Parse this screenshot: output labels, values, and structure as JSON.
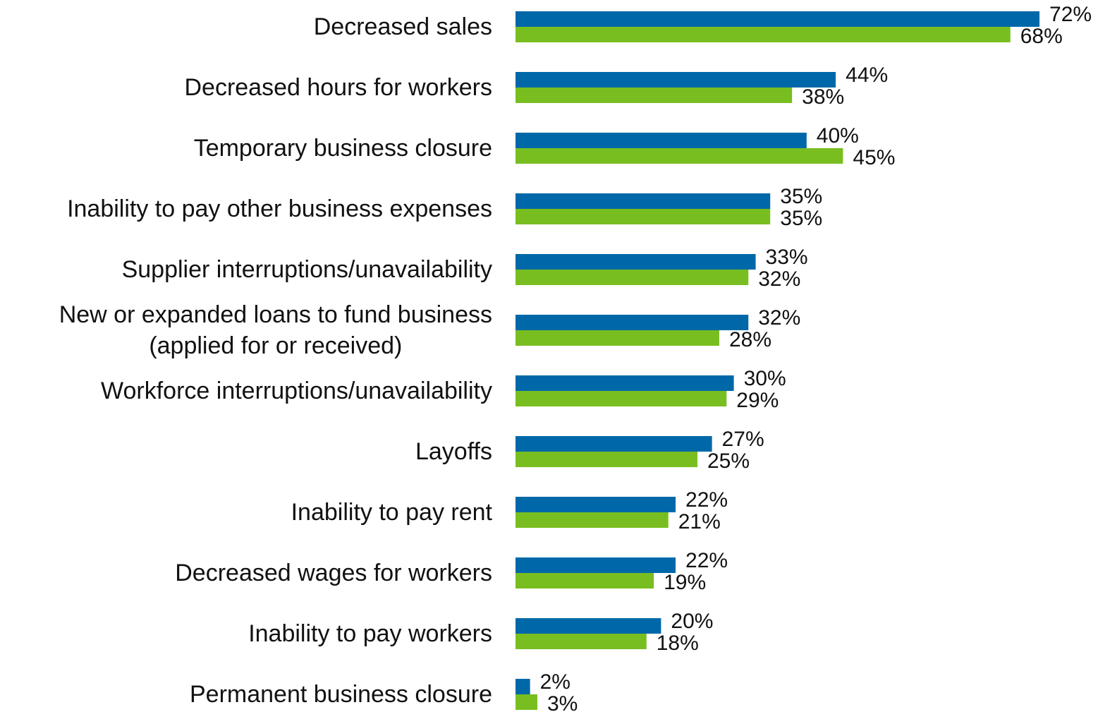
{
  "chart_data": {
    "type": "bar",
    "orientation": "horizontal",
    "categories": [
      "Decreased sales",
      "Decreased hours for workers",
      "Temporary business closure",
      "Inability to pay other business expenses",
      "Supplier interruptions/unavailability",
      "New or expanded loans to fund business\n(applied for or received)",
      "Workforce interruptions/unavailability",
      "Layoffs",
      "Inability to pay rent",
      "Decreased wages for workers",
      "Inability to pay workers",
      "Permanent business closure"
    ],
    "series": [
      {
        "color": "#0068a8",
        "values": [
          72,
          44,
          40,
          35,
          33,
          32,
          30,
          27,
          22,
          22,
          20,
          2
        ],
        "value_labels": [
          "72%",
          "44%",
          "40%",
          "35%",
          "33%",
          "32%",
          "30%",
          "27%",
          "22%",
          "22%",
          "20%",
          "2%"
        ]
      },
      {
        "color": "#78be20",
        "values": [
          68,
          38,
          45,
          35,
          32,
          28,
          29,
          25,
          21,
          19,
          18,
          3
        ],
        "value_labels": [
          "68%",
          "38%",
          "45%",
          "35%",
          "32%",
          "28%",
          "29%",
          "25%",
          "21%",
          "19%",
          "18%",
          "3%"
        ]
      }
    ]
  }
}
